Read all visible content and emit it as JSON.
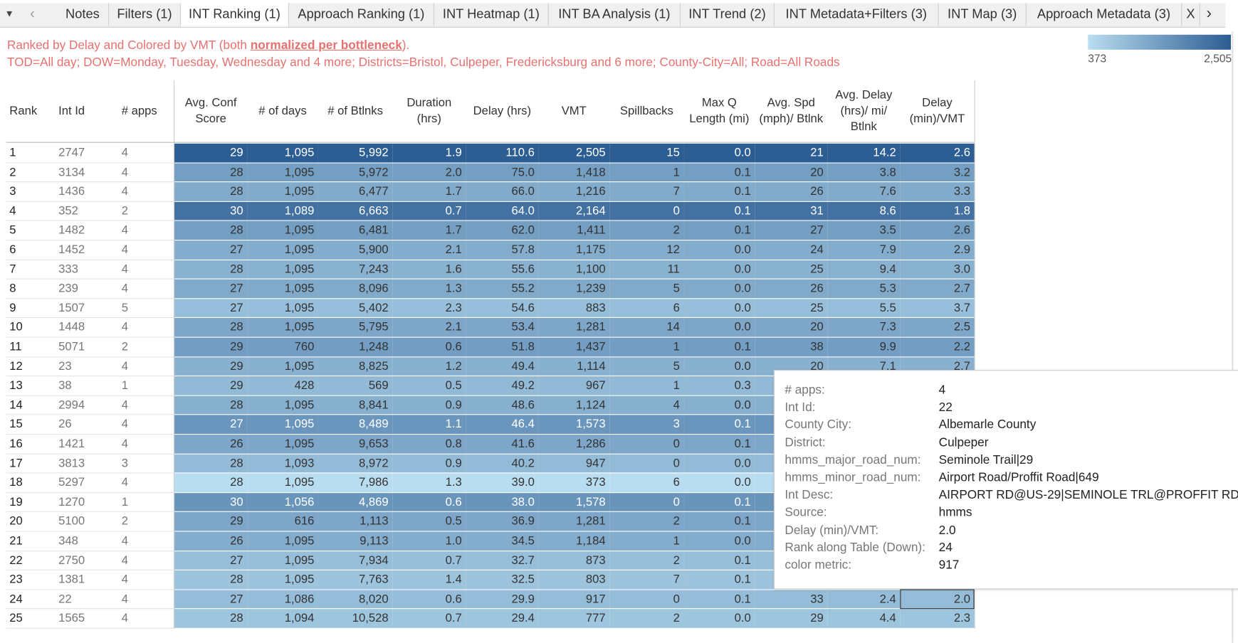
{
  "tabs": [
    "Notes",
    "Filters (1)",
    "INT Ranking (1)",
    "Approach Ranking (1)",
    "INT Heatmap (1)",
    "INT BA Analysis (1)",
    "INT Trend (2)",
    "INT Metadata+Filters (3)",
    "INT Map (3)",
    "Approach Metadata (3)",
    "X"
  ],
  "active_tab": 2,
  "header": {
    "line1": [
      "Ranked by Delay and Colored by VMT (both ",
      "normalized per bottleneck",
      ")."
    ],
    "line2": "TOD=All day; DOW=Monday, Tuesday, Wednesday and 4 more; Districts=Bristol, Culpeper, Fredericksburg and 6 more; County-City=All; Road=All Roads"
  },
  "legend": {
    "min_label": "373",
    "max_label": "2,505"
  },
  "table": {
    "columns": [
      [
        "Rank"
      ],
      [
        "Int Id"
      ],
      [
        "# apps"
      ],
      [
        "Avg. Conf",
        "Score"
      ],
      [
        "# of days"
      ],
      [
        "# of Btlnks"
      ],
      [
        "Duration",
        "(hrs)"
      ],
      [
        "Delay (hrs)"
      ],
      [
        "VMT"
      ],
      [
        "Spillbacks"
      ],
      [
        "Max Q",
        "Length (mi)"
      ],
      [
        "Avg. Spd",
        "(mph)/ Btlnk"
      ],
      [
        "Avg. Delay",
        "(hrs)/ mi/",
        "Btlnk"
      ],
      [
        "Delay",
        "(min)/VMT"
      ]
    ],
    "rows": [
      [
        "1",
        "2747",
        "4",
        "29",
        "1,095",
        "5,992",
        "1.9",
        "110.6",
        "2,505",
        "15",
        "0.0",
        "21",
        "14.2",
        "2.6"
      ],
      [
        "2",
        "3134",
        "4",
        "28",
        "1,095",
        "5,972",
        "2.0",
        "75.0",
        "1,418",
        "1",
        "0.1",
        "20",
        "3.8",
        "3.2"
      ],
      [
        "3",
        "1436",
        "4",
        "28",
        "1,095",
        "6,477",
        "1.7",
        "66.0",
        "1,216",
        "7",
        "0.1",
        "26",
        "7.6",
        "3.3"
      ],
      [
        "4",
        "352",
        "2",
        "30",
        "1,089",
        "6,663",
        "0.7",
        "64.0",
        "2,164",
        "0",
        "0.1",
        "31",
        "8.6",
        "1.8"
      ],
      [
        "5",
        "1482",
        "4",
        "28",
        "1,095",
        "6,481",
        "1.7",
        "62.0",
        "1,411",
        "2",
        "0.1",
        "27",
        "3.5",
        "2.6"
      ],
      [
        "6",
        "1452",
        "4",
        "27",
        "1,095",
        "5,900",
        "2.1",
        "57.8",
        "1,175",
        "12",
        "0.0",
        "24",
        "7.9",
        "2.9"
      ],
      [
        "7",
        "333",
        "4",
        "28",
        "1,095",
        "7,243",
        "1.6",
        "55.6",
        "1,100",
        "11",
        "0.0",
        "25",
        "9.4",
        "3.0"
      ],
      [
        "8",
        "239",
        "4",
        "27",
        "1,095",
        "8,096",
        "1.3",
        "55.2",
        "1,239",
        "5",
        "0.0",
        "26",
        "5.3",
        "2.7"
      ],
      [
        "9",
        "1507",
        "5",
        "27",
        "1,095",
        "5,402",
        "2.3",
        "54.6",
        "883",
        "6",
        "0.0",
        "25",
        "5.5",
        "3.7"
      ],
      [
        "10",
        "1448",
        "4",
        "28",
        "1,095",
        "5,795",
        "2.1",
        "53.4",
        "1,281",
        "14",
        "0.0",
        "20",
        "7.3",
        "2.5"
      ],
      [
        "11",
        "5071",
        "2",
        "29",
        "760",
        "1,248",
        "0.6",
        "51.8",
        "1,437",
        "1",
        "0.1",
        "38",
        "9.9",
        "2.2"
      ],
      [
        "12",
        "23",
        "4",
        "29",
        "1,095",
        "8,825",
        "1.2",
        "49.4",
        "1,114",
        "5",
        "0.0",
        "20",
        "7.1",
        "2.7"
      ],
      [
        "13",
        "38",
        "1",
        "29",
        "428",
        "569",
        "0.5",
        "49.2",
        "967",
        "1",
        "0.3",
        null,
        null,
        null
      ],
      [
        "14",
        "2994",
        "4",
        "28",
        "1,095",
        "8,841",
        "0.9",
        "48.6",
        "1,124",
        "4",
        "0.0",
        null,
        null,
        null
      ],
      [
        "15",
        "26",
        "4",
        "27",
        "1,095",
        "8,489",
        "1.1",
        "46.4",
        "1,573",
        "3",
        "0.1",
        null,
        null,
        null
      ],
      [
        "16",
        "1421",
        "4",
        "26",
        "1,095",
        "9,653",
        "0.8",
        "41.6",
        "1,286",
        "0",
        "0.1",
        null,
        null,
        null
      ],
      [
        "17",
        "3813",
        "3",
        "28",
        "1,093",
        "8,972",
        "0.9",
        "40.2",
        "947",
        "0",
        "0.0",
        null,
        null,
        null
      ],
      [
        "18",
        "5297",
        "4",
        "28",
        "1,095",
        "7,986",
        "1.3",
        "39.0",
        "373",
        "6",
        "0.0",
        null,
        null,
        null
      ],
      [
        "19",
        "1270",
        "1",
        "30",
        "1,056",
        "4,869",
        "0.6",
        "38.0",
        "1,578",
        "0",
        "0.1",
        null,
        null,
        null
      ],
      [
        "20",
        "5100",
        "2",
        "29",
        "616",
        "1,113",
        "0.5",
        "36.9",
        "1,281",
        "2",
        "0.1",
        null,
        null,
        null
      ],
      [
        "21",
        "348",
        "4",
        "26",
        "1,095",
        "9,113",
        "1.0",
        "34.5",
        "1,184",
        "1",
        "0.0",
        null,
        null,
        null
      ],
      [
        "22",
        "2750",
        "4",
        "27",
        "1,095",
        "7,934",
        "0.7",
        "32.7",
        "873",
        "2",
        "0.1",
        null,
        null,
        null
      ],
      [
        "23",
        "1381",
        "4",
        "28",
        "1,095",
        "7,763",
        "1.4",
        "32.5",
        "803",
        "7",
        "0.1",
        null,
        null,
        null
      ],
      [
        "24",
        "22",
        "4",
        "27",
        "1,086",
        "8,020",
        "0.6",
        "29.9",
        "917",
        "0",
        "0.1",
        "33",
        "2.4",
        "2.0"
      ],
      [
        "25",
        "1565",
        "4",
        "28",
        "1,094",
        "10,528",
        "0.7",
        "29.4",
        "777",
        "2",
        "0.0",
        "29",
        "4.4",
        "2.3"
      ]
    ]
  },
  "tooltip": [
    {
      "key": "# apps:",
      "value": "4"
    },
    {
      "key": "Int Id:",
      "value": "22"
    },
    {
      "key": "County City:",
      "value": "Albemarle County"
    },
    {
      "key": "District:",
      "value": "Culpeper"
    },
    {
      "key": "hmms_major_road_num:",
      "value": "Seminole Trail|29"
    },
    {
      "key": "hmms_minor_road_num:",
      "value": "Airport Road/Proffit Road|649"
    },
    {
      "key": "Int Desc:",
      "value": "AIRPORT RD@US-29|SEMINOLE TRL@PROFFIT RD"
    },
    {
      "key": "Source:",
      "value": "hmms"
    },
    {
      "key": "Delay (min)/VMT:",
      "value": "2.0"
    },
    {
      "key": "Rank along Table (Down):",
      "value": "24"
    },
    {
      "key": "color metric:",
      "value": "917"
    }
  ]
}
